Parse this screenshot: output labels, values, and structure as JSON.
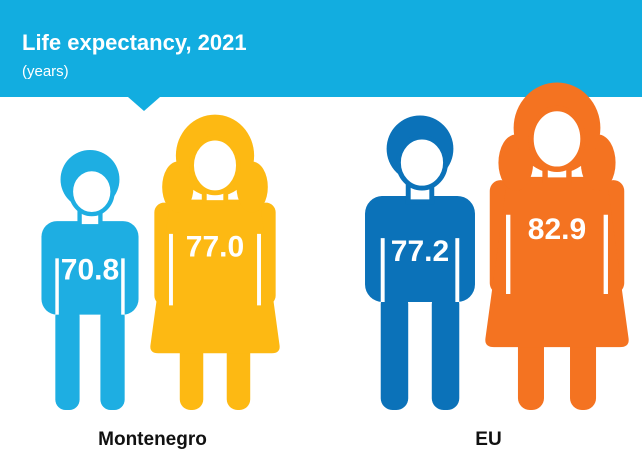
{
  "chart_data": {
    "type": "pictogram",
    "title": "Life expectancy, 2021",
    "subtitle": "(years)",
    "categories": [
      "Montenegro",
      "EU"
    ],
    "series": [
      {
        "colors": [
          "#1eaee2",
          "#0b72b9"
        ],
        "values": [
          70.8,
          77.2
        ],
        "value_labels": [
          "70.8",
          "77.2"
        ],
        "figure": "male"
      },
      {
        "colors": [
          "#fdb913",
          "#f47321"
        ],
        "values": [
          77.0,
          82.9
        ],
        "value_labels": [
          "77.0",
          "82.9"
        ],
        "figure": "female"
      }
    ]
  }
}
